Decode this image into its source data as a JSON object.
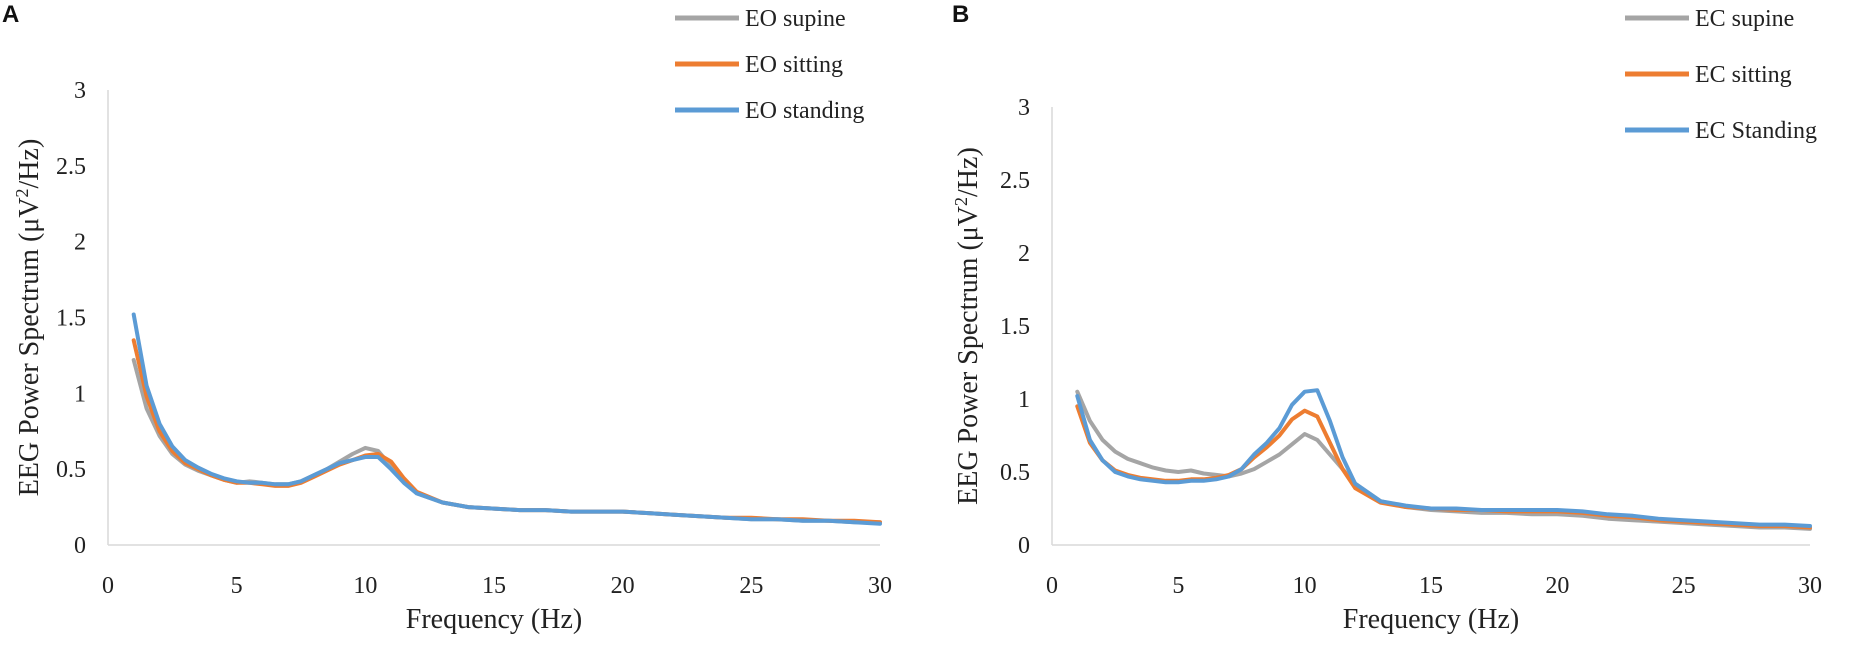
{
  "chart_data": [
    {
      "panel": "A",
      "type": "line",
      "title": "",
      "xlabel": "Frequency (Hz)",
      "ylabel_parts": [
        "EEG Power Spectrum (μV",
        "2",
        "/Hz)"
      ],
      "xlim": [
        0,
        30
      ],
      "ylim": [
        0,
        3
      ],
      "xticks": [
        "0",
        "5",
        "10",
        "15",
        "20",
        "25",
        "30"
      ],
      "yticks": [
        "0",
        "0.5",
        "1",
        "1.5",
        "2",
        "2.5",
        "3"
      ],
      "legend_position": "top-right",
      "x": [
        1,
        1.5,
        2,
        2.5,
        3,
        3.5,
        4,
        4.5,
        5,
        5.5,
        6,
        6.5,
        7,
        7.5,
        8,
        8.5,
        9,
        9.5,
        10,
        10.5,
        11,
        11.5,
        12,
        13,
        14,
        15,
        16,
        17,
        18,
        19,
        20,
        21,
        22,
        23,
        24,
        25,
        26,
        27,
        28,
        29,
        30
      ],
      "series": [
        {
          "name": "EO supine",
          "color": "#a5a5a5",
          "values": [
            1.22,
            0.9,
            0.72,
            0.6,
            0.53,
            0.49,
            0.46,
            0.43,
            0.41,
            0.42,
            0.41,
            0.4,
            0.4,
            0.42,
            0.46,
            0.5,
            0.55,
            0.6,
            0.64,
            0.62,
            0.52,
            0.42,
            0.34,
            0.28,
            0.25,
            0.24,
            0.23,
            0.23,
            0.22,
            0.22,
            0.22,
            0.21,
            0.2,
            0.19,
            0.18,
            0.17,
            0.17,
            0.16,
            0.16,
            0.15,
            0.15
          ]
        },
        {
          "name": "EO sitting",
          "color": "#ed7d31",
          "values": [
            1.35,
            0.98,
            0.75,
            0.62,
            0.54,
            0.5,
            0.46,
            0.43,
            0.41,
            0.41,
            0.4,
            0.39,
            0.39,
            0.41,
            0.45,
            0.49,
            0.53,
            0.56,
            0.59,
            0.6,
            0.55,
            0.44,
            0.35,
            0.28,
            0.25,
            0.24,
            0.23,
            0.23,
            0.22,
            0.22,
            0.22,
            0.21,
            0.2,
            0.19,
            0.18,
            0.18,
            0.17,
            0.17,
            0.16,
            0.16,
            0.15
          ]
        },
        {
          "name": "EO standing",
          "color": "#5b9bd5",
          "values": [
            1.52,
            1.05,
            0.8,
            0.65,
            0.56,
            0.51,
            0.47,
            0.44,
            0.42,
            0.41,
            0.41,
            0.4,
            0.4,
            0.42,
            0.46,
            0.5,
            0.54,
            0.56,
            0.58,
            0.58,
            0.5,
            0.41,
            0.34,
            0.28,
            0.25,
            0.24,
            0.23,
            0.23,
            0.22,
            0.22,
            0.22,
            0.21,
            0.2,
            0.19,
            0.18,
            0.17,
            0.17,
            0.16,
            0.16,
            0.15,
            0.14
          ]
        }
      ]
    },
    {
      "panel": "B",
      "type": "line",
      "title": "",
      "xlabel": "Frequency (Hz)",
      "ylabel_parts": [
        "EEG Power Spectrum (μV",
        "2",
        "/Hz)"
      ],
      "xlim": [
        0,
        30
      ],
      "ylim": [
        0,
        3
      ],
      "xticks": [
        "0",
        "5",
        "10",
        "15",
        "20",
        "25",
        "30"
      ],
      "yticks": [
        "0",
        "0.5",
        "1",
        "1.5",
        "2",
        "2.5",
        "3"
      ],
      "legend_position": "top-right",
      "x": [
        1,
        1.5,
        2,
        2.5,
        3,
        3.5,
        4,
        4.5,
        5,
        5.5,
        6,
        6.5,
        7,
        7.5,
        8,
        8.5,
        9,
        9.5,
        10,
        10.5,
        11,
        11.5,
        12,
        13,
        14,
        15,
        16,
        17,
        18,
        19,
        20,
        21,
        22,
        23,
        24,
        25,
        26,
        27,
        28,
        29,
        30
      ],
      "series": [
        {
          "name": "EC supine",
          "color": "#a5a5a5",
          "values": [
            1.05,
            0.85,
            0.72,
            0.64,
            0.59,
            0.56,
            0.53,
            0.51,
            0.5,
            0.51,
            0.49,
            0.48,
            0.47,
            0.49,
            0.52,
            0.57,
            0.62,
            0.69,
            0.76,
            0.72,
            0.62,
            0.52,
            0.42,
            0.3,
            0.26,
            0.24,
            0.23,
            0.22,
            0.22,
            0.21,
            0.21,
            0.2,
            0.18,
            0.17,
            0.16,
            0.15,
            0.14,
            0.13,
            0.12,
            0.12,
            0.11
          ]
        },
        {
          "name": "EC sitting",
          "color": "#ed7d31",
          "values": [
            0.95,
            0.7,
            0.58,
            0.51,
            0.48,
            0.46,
            0.45,
            0.44,
            0.44,
            0.45,
            0.45,
            0.46,
            0.48,
            0.52,
            0.6,
            0.67,
            0.75,
            0.86,
            0.92,
            0.88,
            0.7,
            0.52,
            0.39,
            0.29,
            0.26,
            0.25,
            0.24,
            0.24,
            0.23,
            0.23,
            0.23,
            0.22,
            0.2,
            0.19,
            0.17,
            0.16,
            0.15,
            0.14,
            0.13,
            0.13,
            0.12
          ]
        },
        {
          "name": "EC Standing",
          "color": "#5b9bd5",
          "values": [
            1.02,
            0.72,
            0.58,
            0.5,
            0.47,
            0.45,
            0.44,
            0.43,
            0.43,
            0.44,
            0.44,
            0.45,
            0.47,
            0.52,
            0.62,
            0.7,
            0.8,
            0.96,
            1.05,
            1.06,
            0.85,
            0.6,
            0.42,
            0.3,
            0.27,
            0.25,
            0.25,
            0.24,
            0.24,
            0.24,
            0.24,
            0.23,
            0.21,
            0.2,
            0.18,
            0.17,
            0.16,
            0.15,
            0.14,
            0.14,
            0.13
          ]
        }
      ]
    }
  ]
}
